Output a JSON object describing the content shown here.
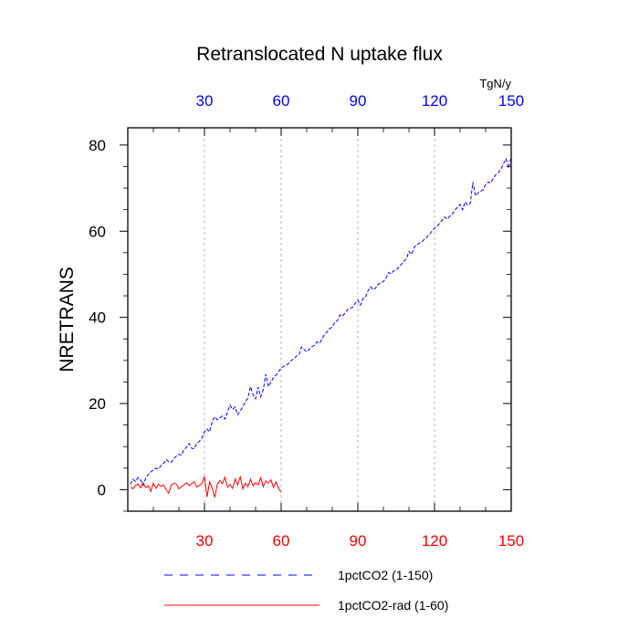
{
  "chart_data": {
    "type": "line",
    "title": "Retranslocated N uptake flux",
    "ylabel": "NRETRANS",
    "units_label": "TgN/y",
    "xlim": [
      0,
      150
    ],
    "ylim": [
      -5,
      84
    ],
    "x_ticks": [
      30,
      60,
      90,
      120,
      150
    ],
    "y_ticks": [
      0,
      20,
      40,
      60,
      80
    ],
    "x_tick_color_top": "#0000ff",
    "x_tick_color_bottom": "#ff0000",
    "grid": "vertical dashed at x ticks",
    "legend_position": "bottom",
    "series": [
      {
        "name": "1pctCO2 (1-150)",
        "color": "#0000ff",
        "dash": "dashed",
        "x_start": 1,
        "values": [
          1.2,
          2.4,
          1.9,
          2.8,
          2.2,
          1.0,
          2.6,
          3.5,
          4.1,
          4.6,
          5.0,
          4.8,
          5.6,
          6.1,
          7.0,
          6.5,
          6.3,
          7.2,
          7.8,
          8.2,
          8.0,
          9.3,
          9.8,
          10.7,
          9.6,
          9.5,
          10.8,
          11.2,
          12.0,
          13.4,
          14.1,
          13.4,
          15.8,
          16.9,
          16.2,
          16.7,
          17.1,
          16.4,
          18.0,
          19.6,
          18.6,
          19.2,
          17.4,
          18.3,
          19.2,
          20.4,
          21.3,
          23.9,
          22.1,
          21.1,
          23.8,
          21.6,
          23.2,
          26.8,
          23.9,
          25.0,
          26.0,
          26.6,
          27.4,
          28.3,
          28.6,
          28.9,
          29.3,
          30.0,
          30.4,
          31.0,
          31.3,
          33.1,
          32.5,
          32.0,
          32.6,
          33.2,
          33.5,
          34.3,
          34.0,
          35.0,
          36.1,
          36.6,
          37.4,
          37.8,
          38.9,
          39.2,
          40.6,
          40.3,
          41.0,
          41.8,
          42.0,
          42.4,
          43.3,
          44.0,
          42.8,
          44.3,
          44.7,
          46.2,
          47.1,
          46.4,
          46.8,
          47.7,
          48.0,
          48.3,
          49.1,
          50.4,
          50.1,
          50.8,
          51.0,
          51.6,
          52.3,
          53.0,
          53.6,
          55.3,
          54.6,
          56.2,
          56.9,
          57.2,
          57.5,
          58.1,
          58.6,
          59.3,
          60.0,
          60.7,
          61.1,
          61.9,
          62.6,
          63.3,
          62.8,
          63.5,
          64.0,
          64.9,
          65.6,
          66.2,
          65.0,
          66.8,
          66.0,
          66.5,
          71.4,
          68.2,
          68.9,
          69.3,
          69.6,
          70.8,
          71.4,
          71.2,
          72.3,
          73.1,
          73.6,
          74.4,
          75.7,
          76.8,
          74.6,
          77.3
        ]
      },
      {
        "name": "1pctCO2-rad (1-60)",
        "color": "#ff0000",
        "dash": "solid",
        "x_start": 1,
        "values": [
          0.6,
          0.2,
          1.0,
          1.3,
          0.4,
          1.6,
          0.5,
          0.9,
          -0.4,
          1.5,
          0.3,
          1.2,
          0.8,
          1.1,
          0.0,
          -0.8,
          1.0,
          1.5,
          1.3,
          0.2,
          0.7,
          1.1,
          1.6,
          0.9,
          1.4,
          1.8,
          0.6,
          1.0,
          1.5,
          3.1,
          -1.7,
          1.8,
          0.4,
          -1.8,
          1.2,
          2.1,
          1.4,
          2.9,
          0.6,
          1.2,
          0.3,
          2.5,
          1.1,
          3.0,
          0.2,
          1.5,
          0.7,
          2.4,
          0.9,
          1.6,
          1.1,
          2.8,
          0.7,
          2.0,
          1.5,
          2.3,
          0.5,
          1.8,
          0.2,
          -0.6
        ]
      }
    ]
  }
}
